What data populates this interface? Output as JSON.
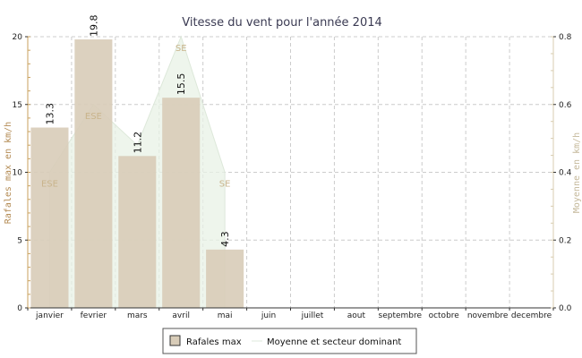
{
  "chart_data": {
    "type": "bar",
    "title": "Vitesse du vent pour l'année 2014",
    "categories": [
      "janvier",
      "fevrier",
      "mars",
      "avril",
      "mai",
      "juin",
      "juillet",
      "aout",
      "septembre",
      "octobre",
      "novembre",
      "decembre"
    ],
    "ylabel": "Rafales max en km/h",
    "y2label": "Moyenne en km/h",
    "ylim": [
      0,
      20
    ],
    "y2lim": [
      0,
      0.8
    ],
    "yticks": [
      "0",
      "5",
      "10",
      "15",
      "20"
    ],
    "y2ticks": [
      "0.0",
      "0.2",
      "0.4",
      "0.6",
      "0.8"
    ],
    "grid": true,
    "legend_position": "bottom",
    "series": [
      {
        "name": "Rafales max",
        "kind": "bar",
        "axis": "left",
        "values": [
          13.3,
          19.8,
          11.2,
          15.5,
          4.3,
          null,
          null,
          null,
          null,
          null,
          null,
          null
        ],
        "labels": [
          "13.3",
          "19.8",
          "11.2",
          "15.5",
          "4.3"
        ],
        "color": "#d8ccb8"
      },
      {
        "name": "Moyenne et secteur dominant",
        "kind": "area",
        "axis": "right",
        "values": [
          0.4,
          0.6,
          0.48,
          0.8,
          0.4,
          null,
          null,
          null,
          null,
          null,
          null,
          null
        ],
        "sectors": [
          "ESE",
          "ESE",
          "",
          "SE",
          "SE"
        ],
        "color": "#e8f2e6"
      }
    ]
  }
}
